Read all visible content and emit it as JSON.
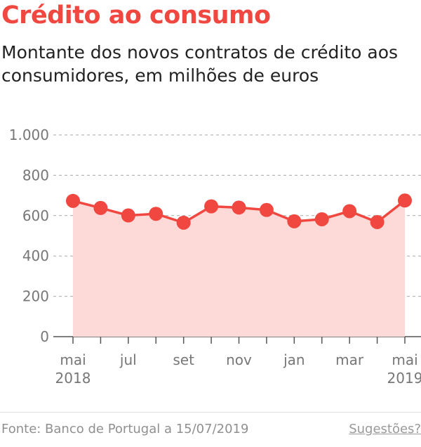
{
  "header": {
    "title": "Crédito ao consumo",
    "subtitle": "Montante dos novos contratos de crédito aos consumidores, em milhões de euros"
  },
  "footer": {
    "source": "Fonte: Banco de Portugal a 15/07/2019",
    "suggestions": "Sugestões?"
  },
  "colors": {
    "accent": "#f04840",
    "area_fill": "#fddad8",
    "grid": "#aaaaaa",
    "axis_text": "#777777"
  },
  "chart_data": {
    "type": "area",
    "title": "Crédito ao consumo",
    "subtitle": "Montante dos novos contratos de crédito aos consumidores, em milhões de euros",
    "xlabel": "",
    "ylabel": "",
    "x": [
      "2018-05",
      "2018-06",
      "2018-07",
      "2018-08",
      "2018-09",
      "2018-10",
      "2018-11",
      "2018-12",
      "2019-01",
      "2019-02",
      "2019-03",
      "2019-04",
      "2019-05"
    ],
    "series": [
      {
        "values": [
          673,
          638,
          601,
          609,
          565,
          646,
          640,
          628,
          572,
          582,
          622,
          568,
          675
        ]
      }
    ],
    "ylim": [
      0,
      1000
    ],
    "yticks": [
      0,
      200,
      400,
      600,
      800,
      1000
    ],
    "ytick_labels": [
      "0",
      "200",
      "400",
      "600",
      "800",
      "1.000"
    ],
    "xtick_labels": [
      {
        "index": 0,
        "lines": [
          "mai",
          "2018"
        ]
      },
      {
        "index": 2,
        "lines": [
          "jul"
        ]
      },
      {
        "index": 4,
        "lines": [
          "set"
        ]
      },
      {
        "index": 6,
        "lines": [
          "nov"
        ]
      },
      {
        "index": 8,
        "lines": [
          "jan"
        ]
      },
      {
        "index": 10,
        "lines": [
          "mar"
        ]
      },
      {
        "index": 12,
        "lines": [
          "mai",
          "2019"
        ]
      }
    ],
    "grid": true,
    "legend": "none"
  }
}
